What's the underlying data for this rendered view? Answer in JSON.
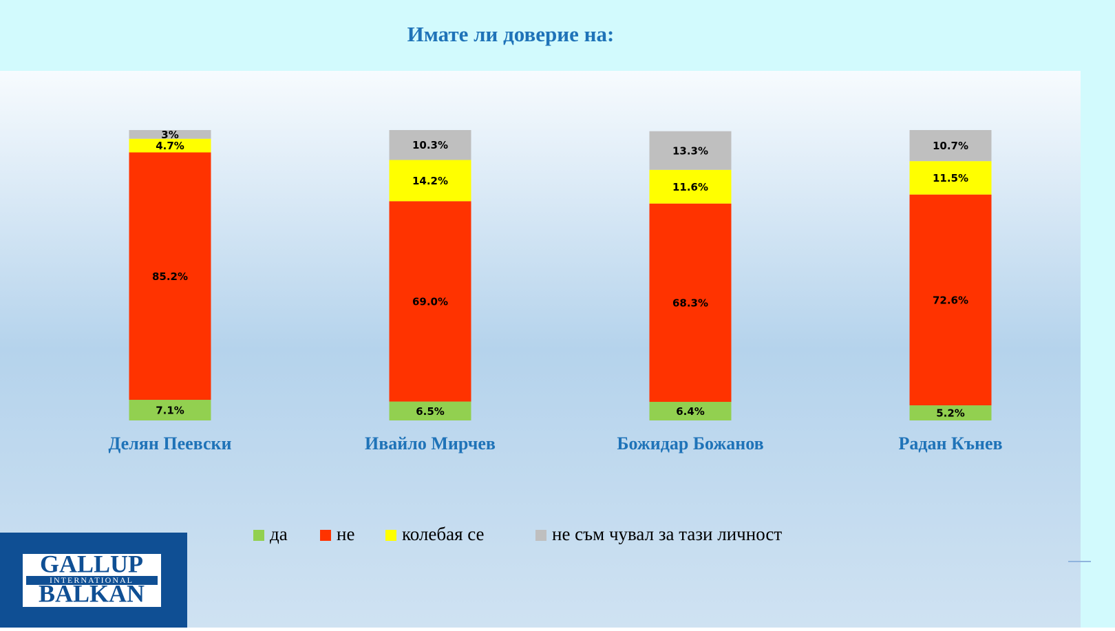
{
  "chart_data": {
    "type": "stacked_bar",
    "title": "Имате  ли доверие на:",
    "categories": [
      "Делян Пеевски",
      "Ивайло Мирчев",
      "Божидар Божанов",
      "Радан Кънев"
    ],
    "ylim": [
      0,
      100
    ],
    "series": [
      {
        "name": "да",
        "color": "#92d050",
        "values": [
          7.1,
          6.5,
          6.4,
          5.2
        ],
        "value_labels": [
          "7.1%",
          "6.5%",
          "6.4%",
          "5.2%"
        ]
      },
      {
        "name": "не",
        "color": "#ff3300",
        "values": [
          85.2,
          69,
          68.3,
          72.6
        ],
        "value_labels": [
          "85.2%",
          "69.0%",
          "68.3%",
          "72.6%"
        ]
      },
      {
        "name": "колебая се",
        "color": "#ffff00",
        "values": [
          4.7,
          14.2,
          11.6,
          11.5
        ],
        "value_labels": [
          "4.7%",
          "14.2%",
          "11.6%",
          "11.5%"
        ]
      },
      {
        "name": "не съм чувал за тази личност",
        "color": "#bfbfbf",
        "values": [
          3,
          10.3,
          13.3,
          10.7
        ],
        "value_labels": [
          "3%",
          "10.3%",
          "13.3%",
          "10.7%"
        ]
      }
    ]
  },
  "logo": {
    "top": "GALLUP",
    "middle": "INTERNATIONAL",
    "bottom": "BALKAN"
  }
}
